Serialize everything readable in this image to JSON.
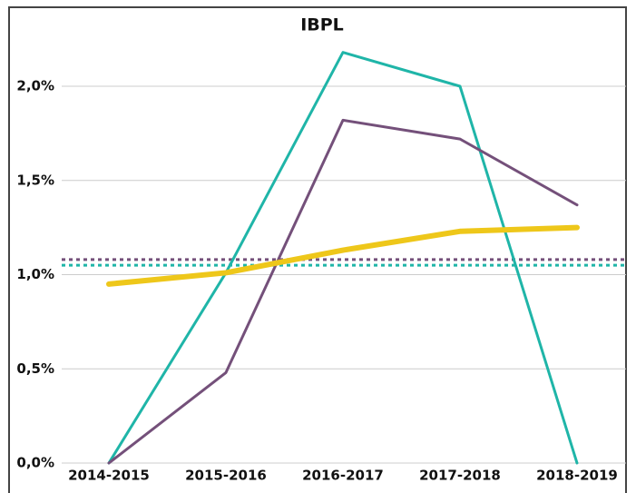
{
  "chart_data": {
    "type": "line",
    "title": "IBPL",
    "categories": [
      "2014-2015",
      "2015-2016",
      "2016-2017",
      "2017-2018",
      "2018-2019"
    ],
    "series": [
      {
        "color": "#1fb5a8",
        "width": 3,
        "values": [
          0,
          1.01,
          2.18,
          2.0,
          0
        ]
      },
      {
        "color": "#74507a",
        "width": 3,
        "values": [
          0,
          0.48,
          1.82,
          1.72,
          1.37
        ]
      },
      {
        "color": "#eec71a",
        "width": 6,
        "values": [
          0.95,
          1.01,
          1.13,
          1.23,
          1.25
        ]
      }
    ],
    "reference_lines": [
      {
        "color": "#74507a",
        "value": 1.08,
        "style": "dotted"
      },
      {
        "color": "#1fb5a8",
        "value": 1.05,
        "style": "dotted"
      }
    ],
    "ylim": [
      0,
      2.2
    ],
    "yticks": [
      {
        "value": 0,
        "label": "0,0%"
      },
      {
        "value": 0.5,
        "label": "0,5%"
      },
      {
        "value": 1,
        "label": "1,0%"
      },
      {
        "value": 1.5,
        "label": "1,5%"
      },
      {
        "value": 2,
        "label": "2,0%"
      }
    ],
    "grid": true
  }
}
